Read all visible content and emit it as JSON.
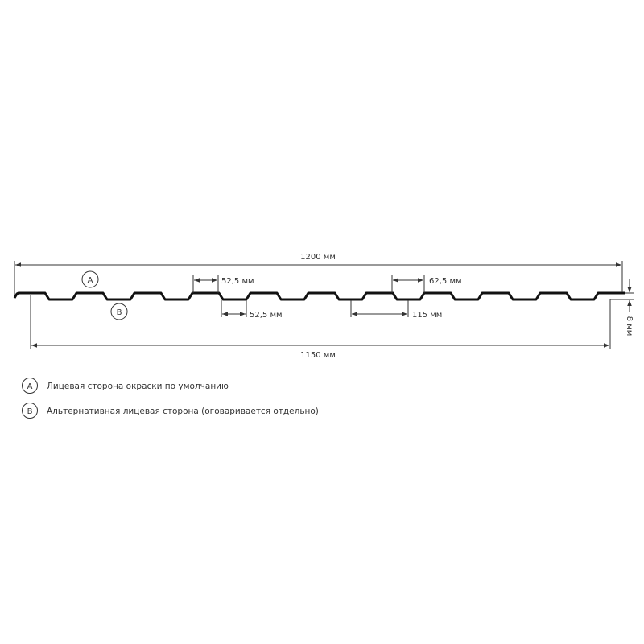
{
  "dimensions": {
    "total_width": "1200 мм",
    "useful_width": "1150 мм",
    "ridge_top": "52,5 мм",
    "valley_bottom": "52,5 мм",
    "ridge_top_2": "62,5 мм",
    "pitch": "115 мм",
    "height": "8 мм"
  },
  "markers": {
    "a": "A",
    "b": "B"
  },
  "legend": [
    {
      "marker": "A",
      "text": "Лицевая сторона окраски по умолчанию"
    },
    {
      "marker": "B",
      "text": "Альтернативная лицевая сторона (оговаривается отдельно)"
    }
  ],
  "colors": {
    "line": "#111111",
    "text": "#333333"
  }
}
